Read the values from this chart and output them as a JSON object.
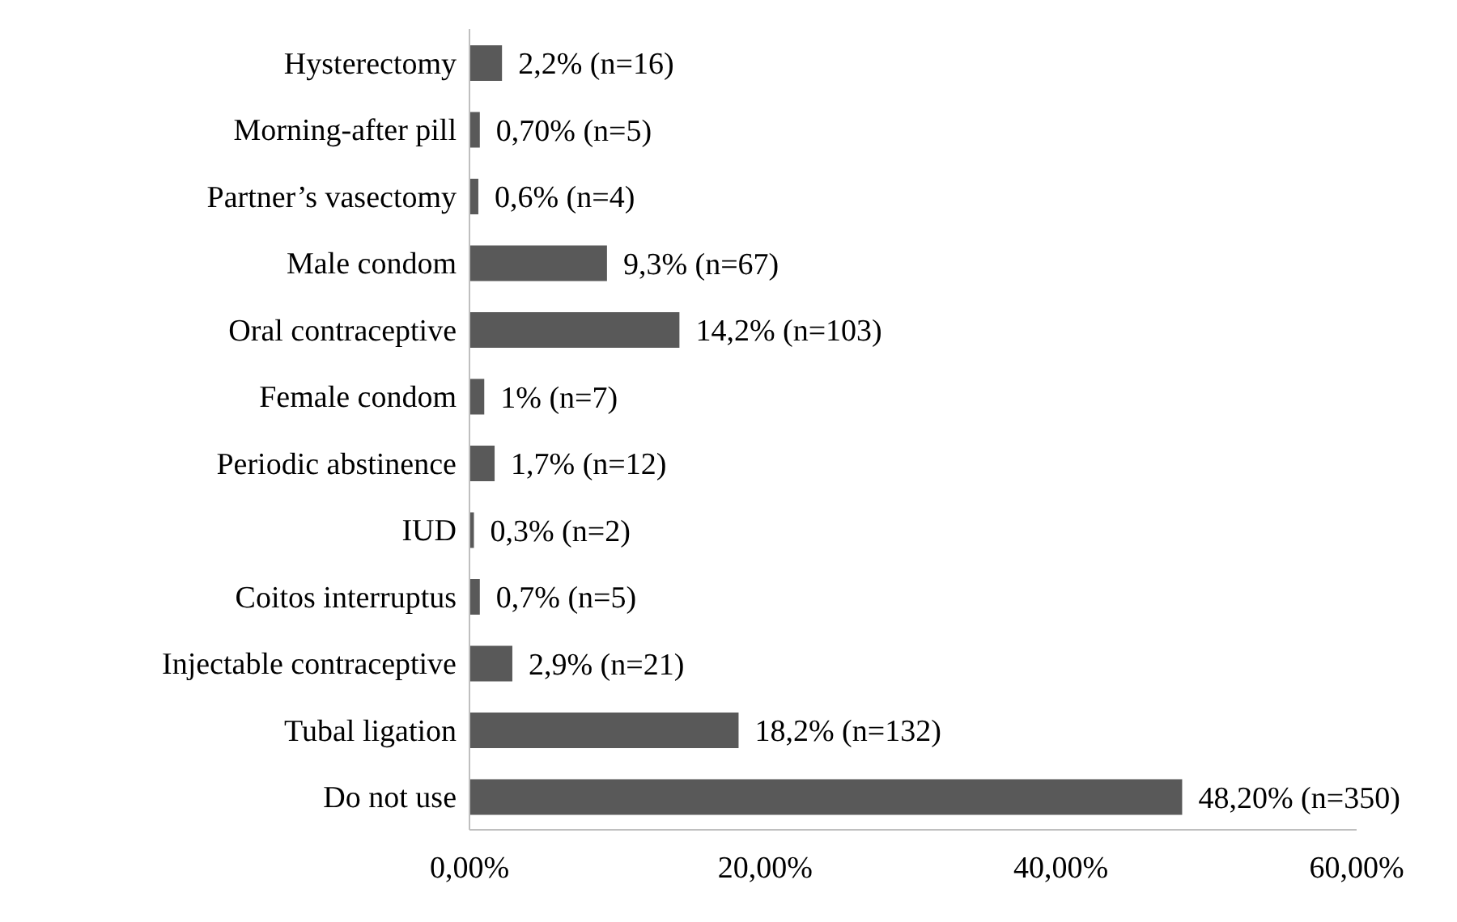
{
  "chart_data": {
    "type": "bar",
    "orientation": "horizontal",
    "categories": [
      "Hysterectomy",
      "Morning-after pill",
      "Partner’s vasectomy",
      "Male condom",
      "Oral contraceptive",
      "Female condom",
      "Periodic abstinence",
      "IUD",
      "Coitos interruptus",
      "Injectable contraceptive",
      "Tubal ligation",
      "Do not use"
    ],
    "values": [
      2.2,
      0.7,
      0.6,
      9.3,
      14.2,
      1,
      1.7,
      0.3,
      0.7,
      2.9,
      18.2,
      48.2
    ],
    "value_labels": [
      "2,2% (n=16)",
      "0,70% (n=5)",
      "0,6% (n=4)",
      "9,3% (n=67)",
      "14,2% (n=103)",
      "1% (n=7)",
      "1,7% (n=12)",
      "0,3% (n=2)",
      "0,7% (n=5)",
      "2,9% (n=21)",
      "18,2% (n=132)",
      "48,20% (n=350)"
    ],
    "color": "#595959",
    "xlim": [
      0,
      60
    ],
    "xticks": [
      {
        "value": 0,
        "label": "0,00%"
      },
      {
        "value": 20,
        "label": "20,00%"
      },
      {
        "value": 40,
        "label": "40,00%"
      },
      {
        "value": 60,
        "label": "60,00%"
      }
    ],
    "grid": false,
    "legend": false
  }
}
